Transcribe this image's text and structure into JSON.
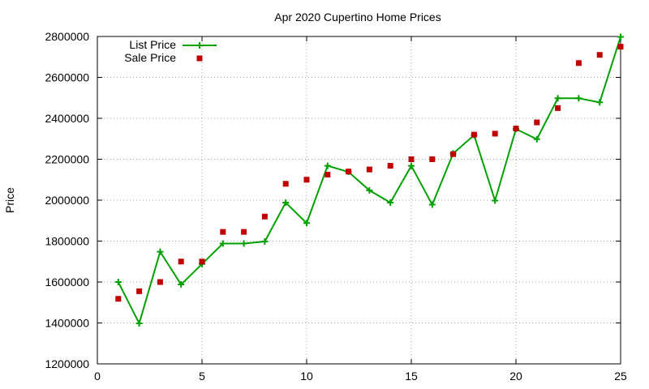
{
  "chart_data": {
    "type": "line",
    "title": "Apr 2020 Cupertino Home Prices",
    "xlabel": "",
    "ylabel": "Price",
    "xlim": [
      0,
      25
    ],
    "ylim": [
      1200000,
      2800000
    ],
    "x_ticks": [
      0,
      5,
      10,
      15,
      20,
      25
    ],
    "y_ticks": [
      1200000,
      1400000,
      1600000,
      1800000,
      2000000,
      2200000,
      2400000,
      2600000,
      2800000
    ],
    "grid": true,
    "legend_position": "top-left",
    "x": [
      1,
      2,
      3,
      4,
      5,
      6,
      7,
      8,
      9,
      10,
      11,
      12,
      13,
      14,
      15,
      16,
      17,
      18,
      19,
      20,
      21,
      22,
      23,
      24,
      25
    ],
    "series": [
      {
        "name": "List Price",
        "style": "line-plus-markers",
        "color": "#00a000",
        "values": [
          1600000,
          1398000,
          1748000,
          1588000,
          1688000,
          1788000,
          1788000,
          1798000,
          1988000,
          1888000,
          2168000,
          2138000,
          2048000,
          1988000,
          2168000,
          1978000,
          2228000,
          2318000,
          1998000,
          2348000,
          2298000,
          2498000,
          2498000,
          2478000,
          2798000
        ]
      },
      {
        "name": "Sale Price",
        "style": "square-points",
        "color": "#c00000",
        "values": [
          1518000,
          1555000,
          1600000,
          1700000,
          1700000,
          1845000,
          1845000,
          1920000,
          2080000,
          2100000,
          2125000,
          2140000,
          2150000,
          2168000,
          2200000,
          2200000,
          2225000,
          2320000,
          2325000,
          2350000,
          2380000,
          2450000,
          2670000,
          2710000,
          2750000
        ]
      }
    ]
  }
}
